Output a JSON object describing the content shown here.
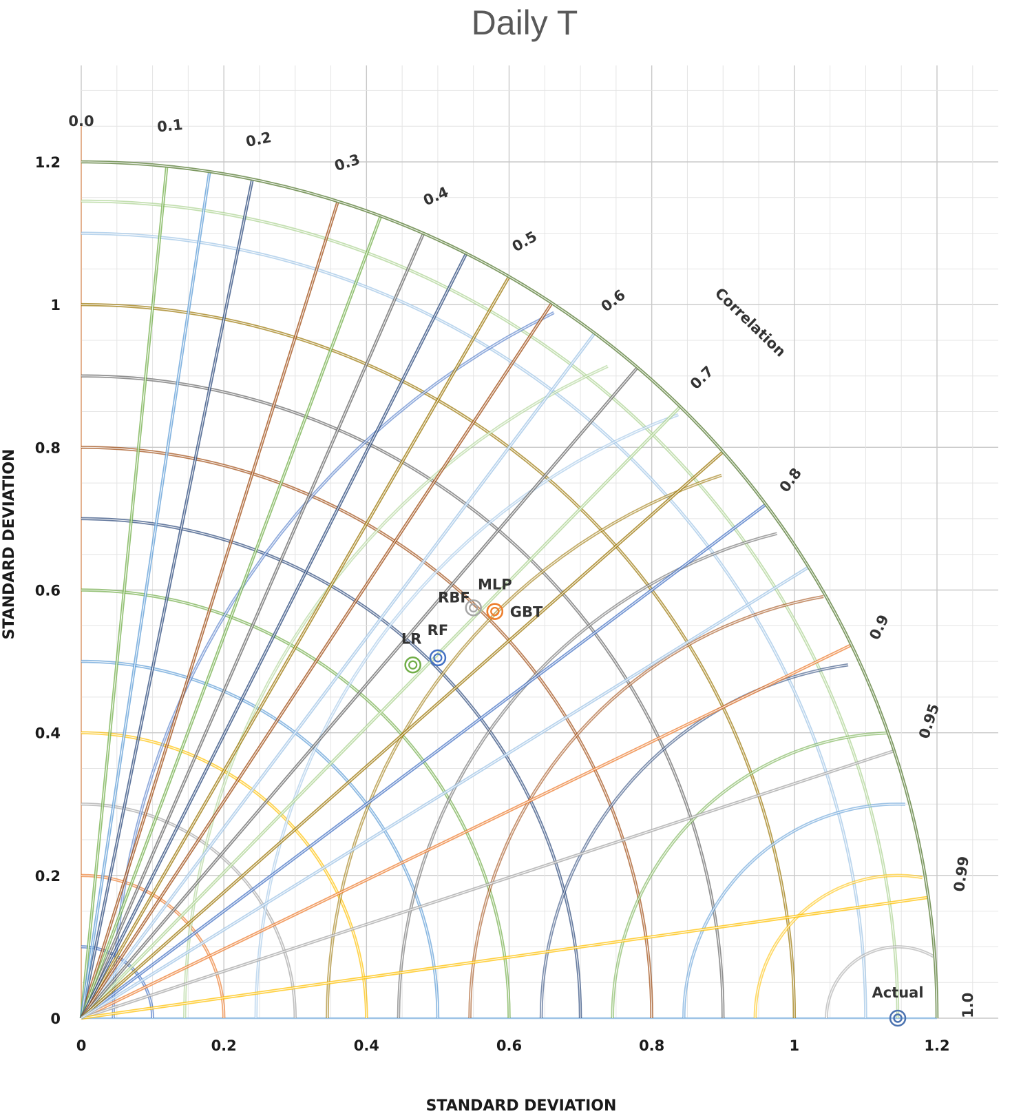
{
  "chart_data": {
    "type": "scatter",
    "subtype": "taylor-diagram",
    "title": "Daily T",
    "xlabel": "STANDARD DEVIATION",
    "ylabel": "STANDARD DEVIATION",
    "xlim": [
      0,
      1.2
    ],
    "ylim": [
      0,
      1.2
    ],
    "x_ticks": [
      "0",
      "0.2",
      "0.4",
      "0.6",
      "0.8",
      "1",
      "1.2"
    ],
    "y_ticks": [
      "0",
      "0.2",
      "0.4",
      "0.6",
      "0.8",
      "1",
      "1.2"
    ],
    "correlation_axis_label": "Correlation",
    "correlation_ticks": [
      {
        "value": 0.0,
        "label": "0.0"
      },
      {
        "value": 0.1,
        "label": "0.1"
      },
      {
        "value": 0.2,
        "label": "0.2"
      },
      {
        "value": 0.3,
        "label": "0.3"
      },
      {
        "value": 0.4,
        "label": "0.4"
      },
      {
        "value": 0.5,
        "label": "0.5"
      },
      {
        "value": 0.6,
        "label": "0.6"
      },
      {
        "value": 0.7,
        "label": "0.7"
      },
      {
        "value": 0.8,
        "label": "0.8"
      },
      {
        "value": 0.9,
        "label": "0.9"
      },
      {
        "value": 0.95,
        "label": "0.95"
      },
      {
        "value": 0.99,
        "label": "0.99"
      },
      {
        "value": 1.0,
        "label": "1.0"
      }
    ],
    "grid": true,
    "reference_point": {
      "name": "Actual",
      "x": 1.145,
      "y": 0.0,
      "color": "#4a72b0"
    },
    "points": [
      {
        "name": "LR",
        "x": 0.465,
        "y": 0.495,
        "color": "#70ad47"
      },
      {
        "name": "RF",
        "x": 0.5,
        "y": 0.505,
        "color": "#4472c4"
      },
      {
        "name": "RBF",
        "x": 0.55,
        "y": 0.575,
        "color": "#a5a5a5"
      },
      {
        "name": "MLP",
        "x": 0.58,
        "y": 0.57,
        "color": "#ffc000"
      },
      {
        "name": "GBT",
        "x": 0.58,
        "y": 0.57,
        "color": "#ed7d31"
      }
    ],
    "colors": {
      "outer_arc": "#76935a",
      "palette": [
        "#4472c4",
        "#ed7d31",
        "#a5a5a5",
        "#ffc000",
        "#5b9bd5",
        "#70ad47",
        "#264478",
        "#9e480e",
        "#636363",
        "#997300",
        "#9dc3e6",
        "#a9d18e"
      ]
    }
  }
}
